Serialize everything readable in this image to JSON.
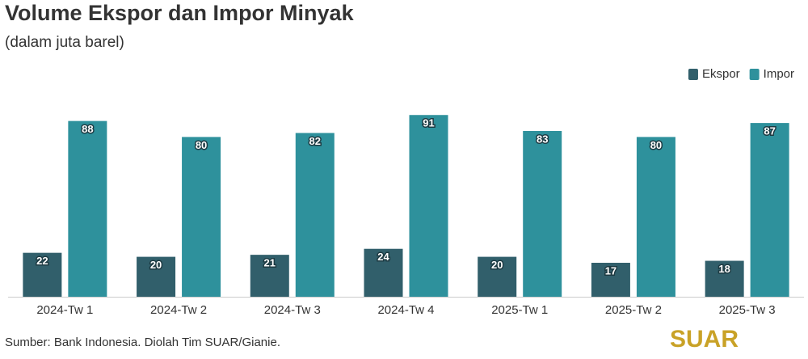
{
  "chart_data": {
    "type": "bar",
    "title": "Volume Ekspor dan Impor Minyak",
    "subtitle": "(dalam juta barel)",
    "categories": [
      "2024-Tw 1",
      "2024-Tw 2",
      "2024-Tw 3",
      "2024-Tw 4",
      "2025-Tw 1",
      "2025-Tw 2",
      "2025-Tw 3"
    ],
    "series": [
      {
        "name": "Ekspor",
        "color": "#315f6b",
        "values": [
          22,
          20,
          21,
          24,
          20,
          17,
          18
        ]
      },
      {
        "name": "Impor",
        "color": "#2e919c",
        "values": [
          88,
          80,
          82,
          91,
          83,
          80,
          87
        ]
      }
    ],
    "legend": "top-right",
    "source": "Sumber: Bank Indonesia. Diolah Tim SUAR/Gianie.",
    "logo": "SUAR"
  }
}
